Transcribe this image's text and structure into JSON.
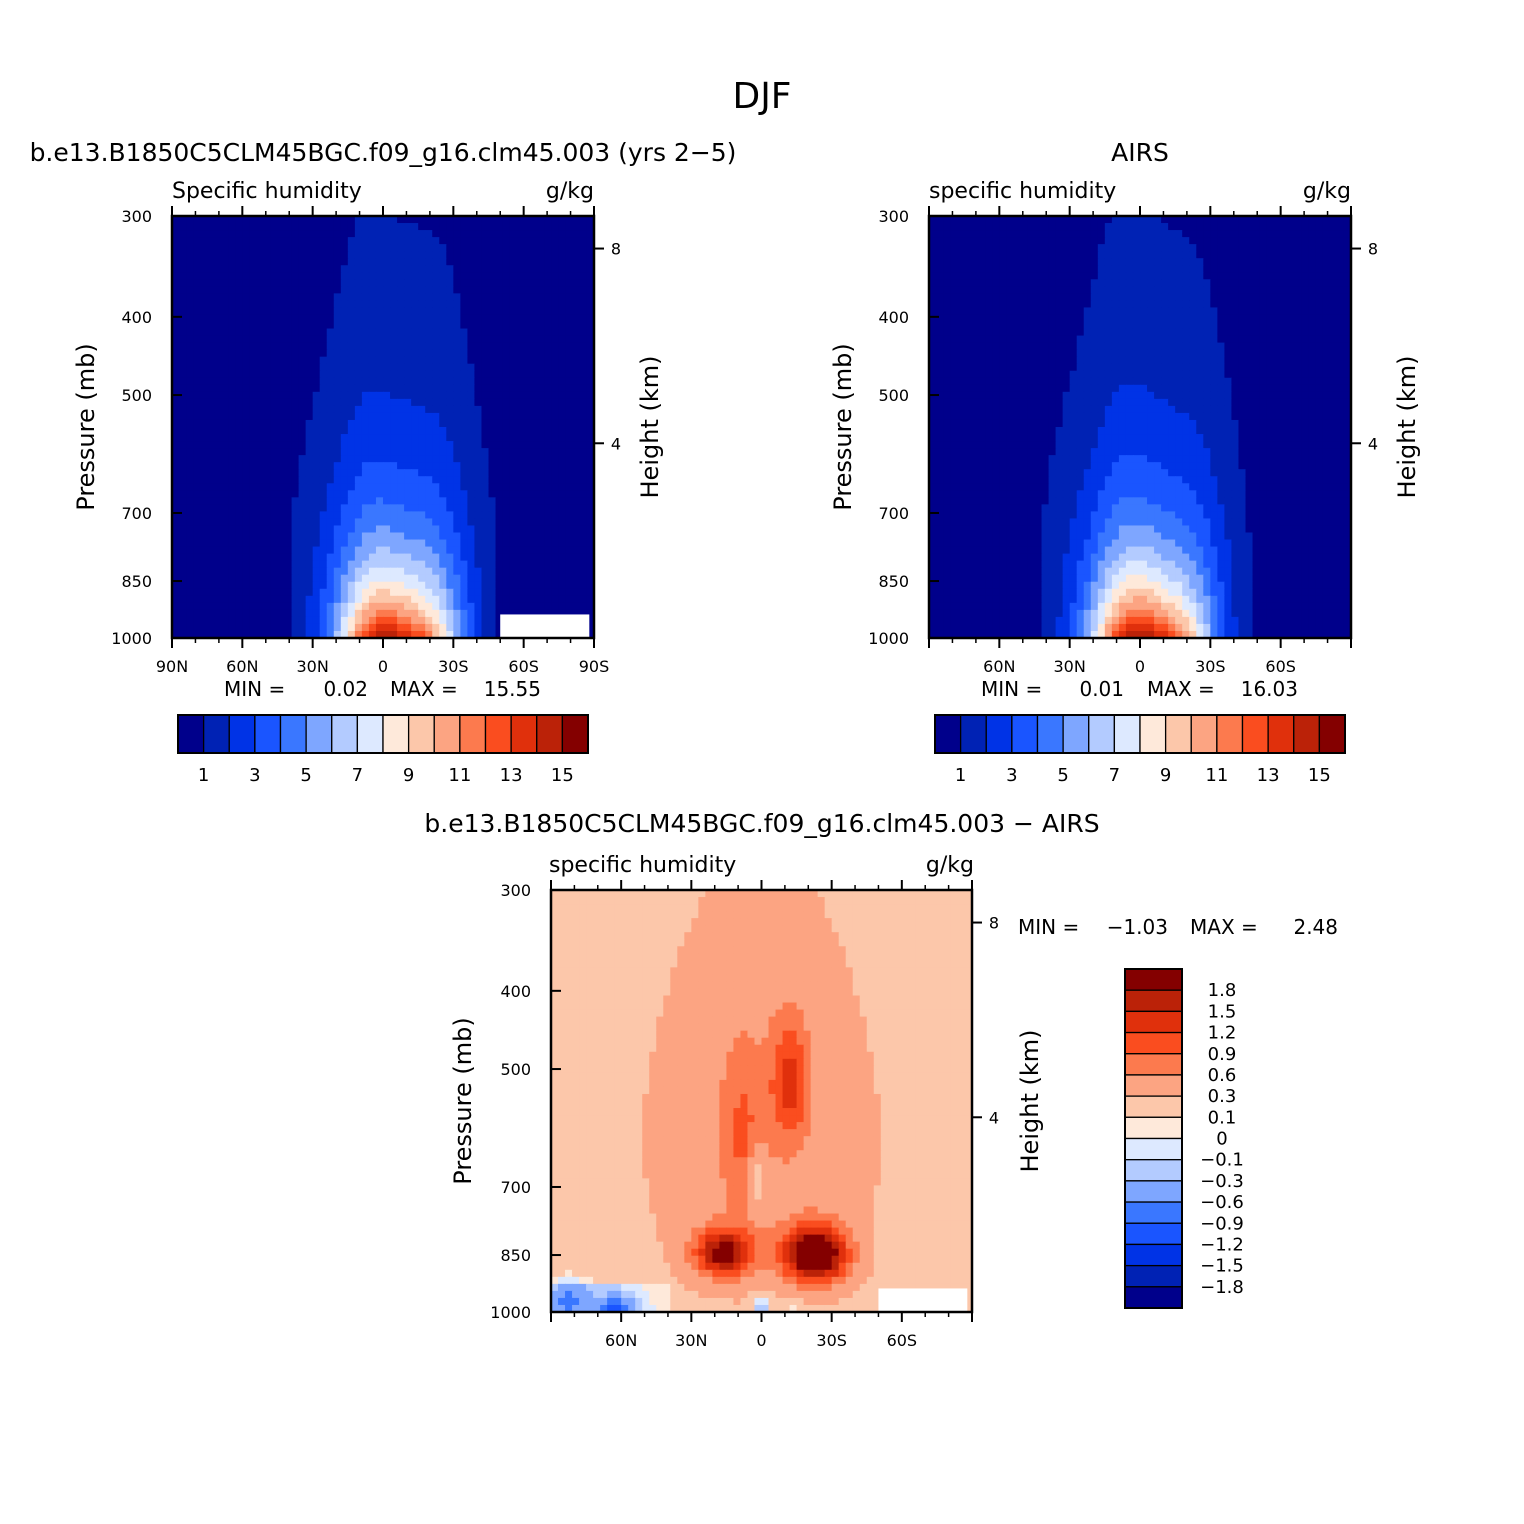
{
  "figure": {
    "title": "DJF"
  },
  "colors": {
    "abs_scale": [
      "#00008b",
      "#0022b4",
      "#0033e6",
      "#1a55ff",
      "#3a77ff",
      "#7ea6ff",
      "#b3cbff",
      "#dde9ff",
      "#fee9da",
      "#fcc7aa",
      "#fca482",
      "#fc7a4e",
      "#fa4d1f",
      "#e0300c",
      "#bb2208",
      "#840000"
    ],
    "diff_scale": [
      "#00008b",
      "#0022b4",
      "#0033e6",
      "#1a55ff",
      "#3a77ff",
      "#7ea6ff",
      "#b3cbff",
      "#dde9ff",
      "#fee9da",
      "#fcc7aa",
      "#fca482",
      "#fc7a4e",
      "#fa4d1f",
      "#e0300c",
      "#bb2208",
      "#840000"
    ]
  },
  "chart_data": [
    {
      "id": "model",
      "type": "contour",
      "title": "b.e13.B1850C5CLM45BGC.f09_g16.clm45.003 (yrs 2−5)",
      "left_label": "Specific humidity",
      "right_label": "g/kg",
      "ylabel": "Pressure (mb)",
      "ylabel_right": "Height (km)",
      "y_ticks": [
        "300",
        "400",
        "500",
        "700",
        "850",
        "1000"
      ],
      "y_tick_values": [
        300,
        400,
        500,
        700,
        850,
        1000
      ],
      "height_ticks": [
        "8",
        "4"
      ],
      "height_tick_values": [
        8,
        4
      ],
      "x_ticks": [
        "90N",
        "60N",
        "30N",
        "0",
        "30S",
        "60S",
        "90S"
      ],
      "x_tick_values": [
        90,
        60,
        30,
        0,
        -30,
        -60,
        -90
      ],
      "xlim": [
        90,
        -90
      ],
      "ylim": [
        1000,
        300
      ],
      "min_label": "MIN =",
      "min_value": "0.02",
      "max_label": "MAX =",
      "max_value": "15.55",
      "colorbar_labels": [
        "1",
        "3",
        "5",
        "7",
        "9",
        "11",
        "13",
        "15"
      ],
      "levels": [
        1,
        2,
        3,
        4,
        5,
        6,
        7,
        8,
        9,
        10,
        11,
        12,
        13,
        14,
        15
      ],
      "peak": 15.55,
      "peak_lat": -5,
      "missing": [
        {
          "lat_from": -50,
          "lat_to": -88,
          "p_from": 1000,
          "p_to": 935
        }
      ]
    },
    {
      "id": "obs",
      "type": "contour",
      "title": "AIRS",
      "left_label": "specific humidity",
      "right_label": "g/kg",
      "ylabel": "Pressure (mb)",
      "ylabel_right": "Height (km)",
      "y_ticks": [
        "300",
        "400",
        "500",
        "700",
        "850",
        "1000"
      ],
      "y_tick_values": [
        300,
        400,
        500,
        700,
        850,
        1000
      ],
      "height_ticks": [
        "8",
        "4"
      ],
      "height_tick_values": [
        8,
        4
      ],
      "x_ticks": [
        "60N",
        "30N",
        "0",
        "30S",
        "60S"
      ],
      "x_tick_values": [
        60,
        30,
        0,
        -30,
        -60
      ],
      "xlim": [
        90,
        -90
      ],
      "ylim": [
        1000,
        300
      ],
      "min_label": "MIN =",
      "min_value": "0.01",
      "max_label": "MAX =",
      "max_value": "16.03",
      "colorbar_labels": [
        "1",
        "3",
        "5",
        "7",
        "9",
        "11",
        "13",
        "15"
      ],
      "levels": [
        1,
        2,
        3,
        4,
        5,
        6,
        7,
        8,
        9,
        10,
        11,
        12,
        13,
        14,
        15
      ],
      "peak": 16.03,
      "peak_lat": -3,
      "missing": []
    },
    {
      "id": "diff",
      "type": "contour",
      "title": "b.e13.B1850C5CLM45BGC.f09_g16.clm45.003 − AIRS",
      "left_label": "specific humidity",
      "right_label": "g/kg",
      "ylabel": "Pressure (mb)",
      "ylabel_right": "Height (km)",
      "y_ticks": [
        "300",
        "400",
        "500",
        "700",
        "850",
        "1000"
      ],
      "y_tick_values": [
        300,
        400,
        500,
        700,
        850,
        1000
      ],
      "height_ticks": [
        "8",
        "4"
      ],
      "height_tick_values": [
        8,
        4
      ],
      "x_ticks": [
        "60N",
        "30N",
        "0",
        "30S",
        "60S"
      ],
      "x_tick_values": [
        60,
        30,
        0,
        -30,
        -60
      ],
      "xlim": [
        90,
        -90
      ],
      "ylim": [
        1000,
        300
      ],
      "min_label": "MIN =",
      "min_value": "−1.03",
      "max_label": "MAX =",
      "max_value": "2.48",
      "colorbar_labels": [
        "1.8",
        "1.5",
        "1.2",
        "0.9",
        "0.6",
        "0.3",
        "0.1",
        "0",
        "−0.1",
        "−0.3",
        "−0.6",
        "−0.9",
        "−1.2",
        "−1.5",
        "−1.8"
      ],
      "levels": [
        -1.8,
        -1.5,
        -1.2,
        -0.9,
        -0.6,
        -0.3,
        -0.1,
        0,
        0.1,
        0.3,
        0.6,
        0.9,
        1.2,
        1.5,
        1.8
      ],
      "missing": [
        {
          "lat_from": -50,
          "lat_to": -88,
          "p_from": 1000,
          "p_to": 935
        }
      ]
    }
  ]
}
